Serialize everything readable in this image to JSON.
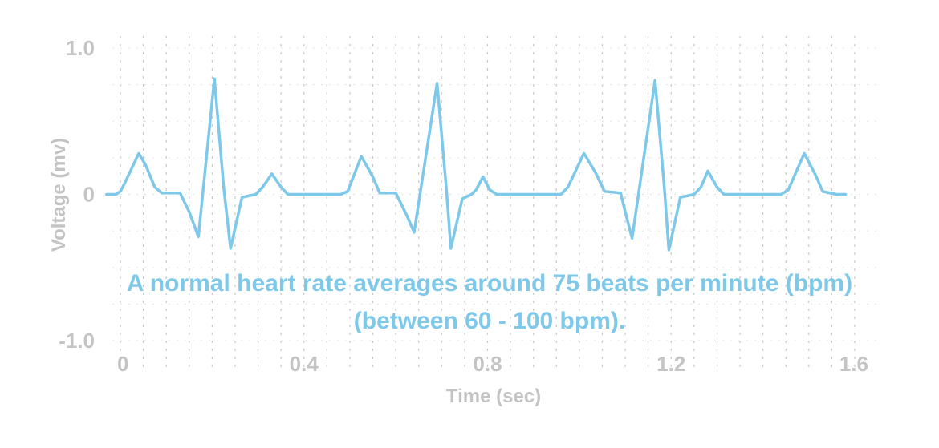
{
  "chart_data": {
    "type": "line",
    "title": "",
    "xlabel": "Time (sec)",
    "ylabel": "Voltage (mv)",
    "xlim": [
      0,
      1.6
    ],
    "ylim": [
      -1.0,
      1.0
    ],
    "grid": true,
    "line_color": "#7ec8ea",
    "x_ticks": [
      {
        "value": 0,
        "label": "0"
      },
      {
        "value": 0.4,
        "label": "0.4"
      },
      {
        "value": 0.8,
        "label": "0.8"
      },
      {
        "value": 1.2,
        "label": "1.2"
      },
      {
        "value": 1.6,
        "label": "1.6"
      }
    ],
    "y_ticks": [
      {
        "value": 1.0,
        "label": "1.0"
      },
      {
        "value": 0,
        "label": "0"
      },
      {
        "value": -1.0,
        "label": "-1.0"
      }
    ],
    "annotation": {
      "line1": "A normal heart rate averages around 75 beats per minute (bpm)",
      "line2": "(between 60 - 100 bpm)."
    },
    "series": [
      {
        "values": [
          [
            -0.03,
            0.0
          ],
          [
            -0.01,
            0.0
          ],
          [
            0.0,
            0.02
          ],
          [
            0.01,
            0.08
          ],
          [
            0.025,
            0.18
          ],
          [
            0.04,
            0.28
          ],
          [
            0.055,
            0.2
          ],
          [
            0.075,
            0.05
          ],
          [
            0.09,
            0.01
          ],
          [
            0.13,
            0.01
          ],
          [
            0.15,
            -0.12
          ],
          [
            0.17,
            -0.29
          ],
          [
            0.205,
            0.79
          ],
          [
            0.225,
            0.05
          ],
          [
            0.24,
            -0.37
          ],
          [
            0.265,
            -0.02
          ],
          [
            0.295,
            0.0
          ],
          [
            0.31,
            0.05
          ],
          [
            0.33,
            0.14
          ],
          [
            0.35,
            0.05
          ],
          [
            0.365,
            0.0
          ],
          [
            0.42,
            0.0
          ],
          [
            0.48,
            0.0
          ],
          [
            0.495,
            0.02
          ],
          [
            0.525,
            0.26
          ],
          [
            0.55,
            0.12
          ],
          [
            0.565,
            0.01
          ],
          [
            0.6,
            0.01
          ],
          [
            0.625,
            -0.15
          ],
          [
            0.64,
            -0.26
          ],
          [
            0.69,
            0.76
          ],
          [
            0.71,
            0.05
          ],
          [
            0.72,
            -0.37
          ],
          [
            0.745,
            -0.03
          ],
          [
            0.765,
            0.0
          ],
          [
            0.775,
            0.03
          ],
          [
            0.79,
            0.12
          ],
          [
            0.805,
            0.03
          ],
          [
            0.82,
            0.0
          ],
          [
            0.88,
            0.0
          ],
          [
            0.96,
            0.0
          ],
          [
            0.975,
            0.05
          ],
          [
            1.01,
            0.28
          ],
          [
            1.035,
            0.15
          ],
          [
            1.055,
            0.02
          ],
          [
            1.09,
            0.01
          ],
          [
            1.1,
            -0.12
          ],
          [
            1.115,
            -0.3
          ],
          [
            1.165,
            0.78
          ],
          [
            1.185,
            0.05
          ],
          [
            1.195,
            -0.38
          ],
          [
            1.22,
            -0.02
          ],
          [
            1.25,
            0.0
          ],
          [
            1.265,
            0.05
          ],
          [
            1.28,
            0.16
          ],
          [
            1.3,
            0.05
          ],
          [
            1.315,
            0.0
          ],
          [
            1.38,
            0.0
          ],
          [
            1.44,
            0.0
          ],
          [
            1.455,
            0.03
          ],
          [
            1.49,
            0.28
          ],
          [
            1.515,
            0.13
          ],
          [
            1.53,
            0.02
          ],
          [
            1.56,
            0.0
          ],
          [
            1.58,
            0.0
          ]
        ]
      }
    ]
  }
}
